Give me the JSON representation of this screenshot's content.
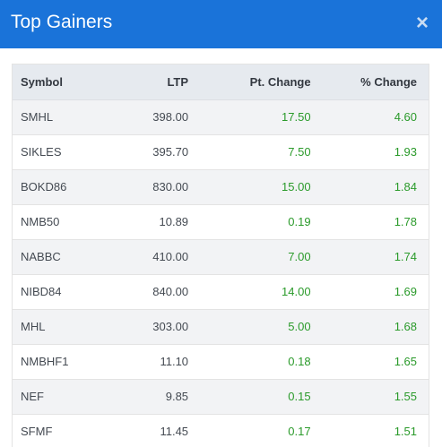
{
  "modal": {
    "title": "Top Gainers",
    "close_label": "×"
  },
  "table": {
    "headers": {
      "symbol": "Symbol",
      "ltp": "LTP",
      "pt_change": "Pt. Change",
      "pct_change": "% Change"
    },
    "rows": [
      {
        "symbol": "SMHL",
        "ltp": "398.00",
        "pt_change": "17.50",
        "pct_change": "4.60"
      },
      {
        "symbol": "SIKLES",
        "ltp": "395.70",
        "pt_change": "7.50",
        "pct_change": "1.93"
      },
      {
        "symbol": "BOKD86",
        "ltp": "830.00",
        "pt_change": "15.00",
        "pct_change": "1.84"
      },
      {
        "symbol": "NMB50",
        "ltp": "10.89",
        "pt_change": "0.19",
        "pct_change": "1.78"
      },
      {
        "symbol": "NABBC",
        "ltp": "410.00",
        "pt_change": "7.00",
        "pct_change": "1.74"
      },
      {
        "symbol": "NIBD84",
        "ltp": "840.00",
        "pt_change": "14.00",
        "pct_change": "1.69"
      },
      {
        "symbol": "MHL",
        "ltp": "303.00",
        "pt_change": "5.00",
        "pct_change": "1.68"
      },
      {
        "symbol": "NMBHF1",
        "ltp": "11.10",
        "pt_change": "0.18",
        "pct_change": "1.65"
      },
      {
        "symbol": "NEF",
        "ltp": "9.85",
        "pt_change": "0.15",
        "pct_change": "1.55"
      },
      {
        "symbol": "SFMF",
        "ltp": "11.45",
        "pt_change": "0.17",
        "pct_change": "1.51"
      }
    ]
  },
  "colors": {
    "header_bg": "#1a73d9",
    "gain": "#2a9a2a",
    "stripe": "#f2f3f5",
    "table_header_bg": "#e6eaef"
  },
  "icons": {
    "close": "close-icon"
  }
}
